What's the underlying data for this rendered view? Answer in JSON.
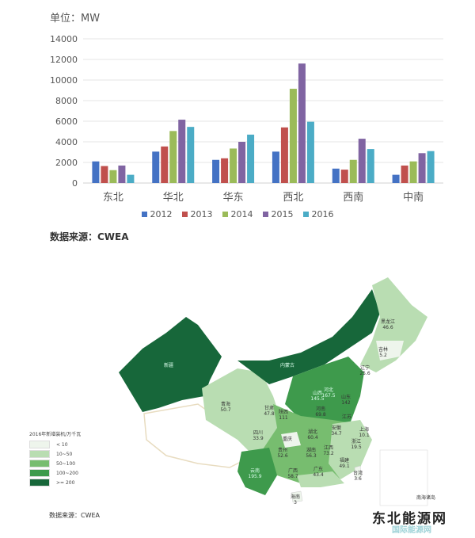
{
  "chart_data": {
    "type": "bar",
    "title": "",
    "unit_label": "单位：MW",
    "xlabel": "",
    "ylabel": "",
    "categories": [
      "东北",
      "华北",
      "华东",
      "西北",
      "西南",
      "中南"
    ],
    "ylim": [
      0,
      14000
    ],
    "yticks": [
      0,
      2000,
      4000,
      6000,
      8000,
      10000,
      12000,
      14000
    ],
    "grid": true,
    "legend_position": "bottom",
    "series": [
      {
        "name": "2012",
        "color": "#4472c4",
        "values": [
          2100,
          3050,
          2250,
          3050,
          1400,
          800
        ]
      },
      {
        "name": "2013",
        "color": "#c0504d",
        "values": [
          1650,
          3550,
          2400,
          5400,
          1300,
          1700
        ]
      },
      {
        "name": "2014",
        "color": "#9bbb59",
        "values": [
          1250,
          5050,
          3350,
          9150,
          2250,
          2100
        ]
      },
      {
        "name": "2015",
        "color": "#8064a2",
        "values": [
          1700,
          6150,
          4000,
          11600,
          4300,
          2900
        ]
      },
      {
        "name": "2016",
        "color": "#4bacc6",
        "values": [
          800,
          5450,
          4700,
          5950,
          3300,
          3100
        ]
      }
    ]
  },
  "source_top": "数据来源：CWEA",
  "map": {
    "legend_title": "2016年新增装机/万千瓦",
    "legend": [
      {
        "label": "< 10",
        "color": "#eef5ec"
      },
      {
        "label": "10~50",
        "color": "#b9ddb2"
      },
      {
        "label": "50~100",
        "color": "#77bd6f"
      },
      {
        "label": "100~200",
        "color": "#3e9a4c"
      },
      {
        "label": ">= 200",
        "color": "#17673a"
      }
    ],
    "provinces": [
      {
        "name": "黑龙江",
        "value": "46.6"
      },
      {
        "name": "吉林",
        "value": "5.2"
      },
      {
        "name": "辽宁",
        "value": "25.6"
      },
      {
        "name": "新疆",
        "value": ""
      },
      {
        "name": "内蒙古",
        "value": ""
      },
      {
        "name": "河北",
        "value": "167.5"
      },
      {
        "name": "山西",
        "value": "145.5"
      },
      {
        "name": "山东",
        "value": "142"
      },
      {
        "name": "青海",
        "value": "50.7"
      },
      {
        "name": "甘肃",
        "value": "47.8"
      },
      {
        "name": "陕西",
        "value": "111"
      },
      {
        "name": "河南",
        "value": "69.8"
      },
      {
        "name": "江苏",
        "value": ""
      },
      {
        "name": "安徽",
        "value": "34.7"
      },
      {
        "name": "上海",
        "value": "10.1"
      },
      {
        "name": "四川",
        "value": "33.9"
      },
      {
        "name": "湖北",
        "value": "60.4"
      },
      {
        "name": "重庆",
        "value": ""
      },
      {
        "name": "浙江",
        "value": "19.5"
      },
      {
        "name": "江西",
        "value": "73.2"
      },
      {
        "name": "贵州",
        "value": "52.6"
      },
      {
        "name": "湖南",
        "value": "56.3"
      },
      {
        "name": "福建",
        "value": "49.1"
      },
      {
        "name": "云南",
        "value": "195.9"
      },
      {
        "name": "广西",
        "value": "58.7"
      },
      {
        "name": "广东",
        "value": "43.4"
      },
      {
        "name": "台湾",
        "value": "3.6"
      },
      {
        "name": "海南",
        "value": "3"
      },
      {
        "name": "南海诸岛",
        "value": ""
      }
    ],
    "source": "数据来源：CWEA"
  },
  "watermark": {
    "text": "东北能源网",
    "sub": "国际能源网"
  }
}
